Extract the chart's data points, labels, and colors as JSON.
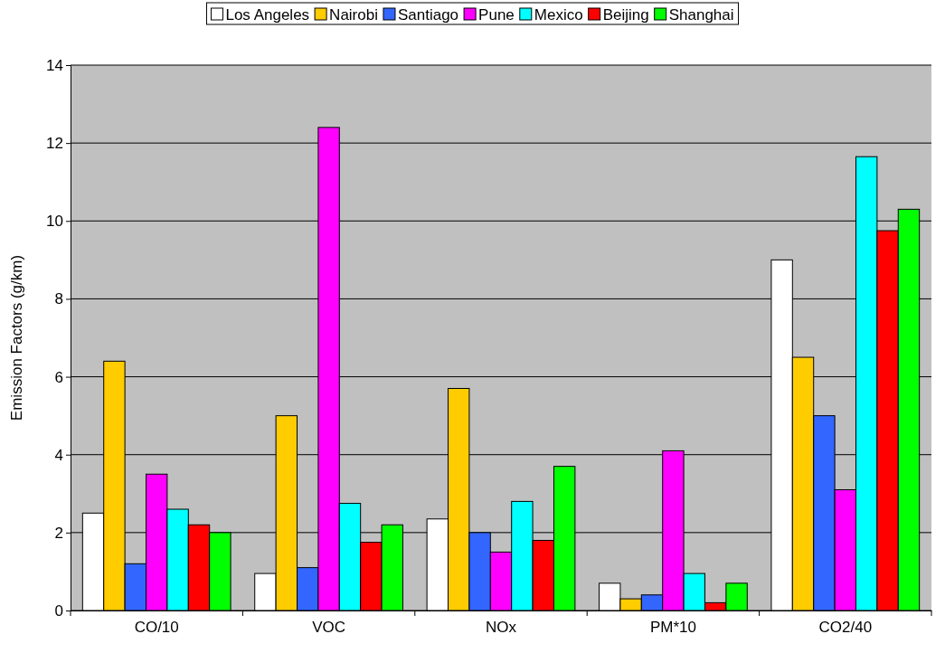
{
  "chart_data": {
    "type": "bar",
    "ylabel": "Emission Factors (g/km)",
    "categories": [
      "CO/10",
      "VOC",
      "NOx",
      "PM*10",
      "CO2/40"
    ],
    "series": [
      {
        "name": "Los Angeles",
        "color": "#ffffff",
        "values": [
          2.5,
          0.95,
          2.35,
          0.7,
          9.0
        ]
      },
      {
        "name": "Nairobi",
        "color": "#ffcc00",
        "values": [
          6.4,
          5.0,
          5.7,
          0.3,
          6.5
        ]
      },
      {
        "name": "Santiago",
        "color": "#3366ff",
        "values": [
          1.2,
          1.1,
          2.0,
          0.4,
          5.0
        ]
      },
      {
        "name": "Pune",
        "color": "#ff00ff",
        "values": [
          3.5,
          12.4,
          1.5,
          4.1,
          3.1
        ]
      },
      {
        "name": "Mexico",
        "color": "#00ffff",
        "values": [
          2.6,
          2.75,
          2.8,
          0.95,
          11.65
        ]
      },
      {
        "name": "Beijing",
        "color": "#ff0000",
        "values": [
          2.2,
          1.75,
          1.8,
          0.2,
          9.75
        ]
      },
      {
        "name": "Shanghai",
        "color": "#00ff00",
        "values": [
          2.0,
          2.2,
          3.7,
          0.7,
          10.3
        ]
      }
    ],
    "ylim": [
      0,
      14
    ],
    "yticks": [
      0,
      2,
      4,
      6,
      8,
      10,
      12,
      14
    ],
    "grid": "y",
    "legend": "top"
  }
}
